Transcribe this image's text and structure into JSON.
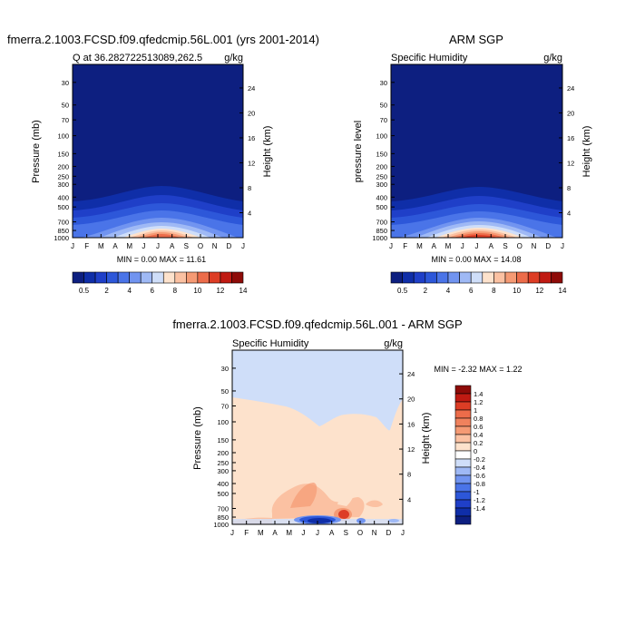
{
  "panels": [
    {
      "main_title": "fmerra.2.1003.FCSD.f09.qfedcmip.56L.001 (yrs 2001-2014)",
      "left_title": "Q at 36.282722513089,262.5",
      "right_title": "g/kg",
      "ylabel": "Pressure (mb)",
      "y2label": "Height (km)",
      "minmax": "MIN =   0.00 MAX =  11.61"
    },
    {
      "main_title": "ARM SGP",
      "left_title": "Specific Humidity",
      "right_title": "g/kg",
      "ylabel": "pressure level",
      "y2label": "Height (km)",
      "minmax": "MIN =   0.00 MAX =  14.08"
    },
    {
      "main_title": "fmerra.2.1003.FCSD.f09.qfedcmip.56L.001 - ARM SGP",
      "left_title": "Specific Humidity",
      "right_title": "g/kg",
      "ylabel": "Pressure (mb)",
      "y2label": "Height (km)",
      "minmax": "MIN =  -2.32 MAX =   1.22"
    }
  ],
  "chart_data": [
    {
      "type": "heatmap",
      "title": "fmerra.2.1003.FCSD.f09.qfedcmip.56L.001 (yrs 2001-2014)",
      "subtitle": "Q at 36.282722513089,262.5",
      "units": "g/kg",
      "xlabel": "",
      "ylabel": "Pressure (mb)",
      "y2label": "Height (km)",
      "x_ticks": [
        "J",
        "F",
        "M",
        "A",
        "M",
        "J",
        "J",
        "A",
        "S",
        "O",
        "N",
        "D",
        "J"
      ],
      "y_ticks": [
        "30",
        "50",
        "70",
        "100",
        "150",
        "200",
        "250",
        "300",
        "400",
        "500",
        "700",
        "850",
        "1000"
      ],
      "y2_ticks": [
        "24",
        "20",
        "16",
        "12",
        "8",
        "4"
      ],
      "ylim": [
        1000,
        20
      ],
      "min": 0.0,
      "max": 11.61,
      "colorbar_labels": [
        "0.5",
        "2",
        "4",
        "6",
        "8",
        "10",
        "12",
        "14"
      ],
      "colorbar_colors": [
        "#0d1f80",
        "#0f2ea8",
        "#1f3fc8",
        "#2d57d9",
        "#4a74e8",
        "#7194f0",
        "#9fb9f5",
        "#cfdef9",
        "#fde2cc",
        "#fbc1a2",
        "#f59a74",
        "#ec6c4a",
        "#dd3d25",
        "#c01a12",
        "#8e0b08"
      ],
      "freezing_contours": "pressure-level bands rising in summer (Jul peak)"
    },
    {
      "type": "heatmap",
      "title": "ARM SGP",
      "subtitle": "Specific Humidity",
      "units": "g/kg",
      "ylabel": "pressure level",
      "y2label": "Height (km)",
      "x_ticks": [
        "J",
        "F",
        "M",
        "A",
        "M",
        "J",
        "J",
        "A",
        "S",
        "O",
        "N",
        "D",
        "J"
      ],
      "y_ticks": [
        "30",
        "50",
        "70",
        "100",
        "150",
        "200",
        "250",
        "300",
        "400",
        "500",
        "700",
        "850",
        "1000"
      ],
      "y2_ticks": [
        "24",
        "20",
        "16",
        "12",
        "8",
        "4"
      ],
      "ylim": [
        1000,
        20
      ],
      "min": 0.0,
      "max": 14.08,
      "colorbar_labels": [
        "0.5",
        "2",
        "4",
        "6",
        "8",
        "10",
        "12",
        "14"
      ],
      "colorbar_colors": [
        "#0d1f80",
        "#0f2ea8",
        "#1f3fc8",
        "#2d57d9",
        "#4a74e8",
        "#7194f0",
        "#9fb9f5",
        "#cfdef9",
        "#fde2cc",
        "#fbc1a2",
        "#f59a74",
        "#ec6c4a",
        "#dd3d25",
        "#c01a12",
        "#8e0b08"
      ]
    },
    {
      "type": "heatmap",
      "title": "fmerra.2.1003.FCSD.f09.qfedcmip.56L.001 - ARM SGP",
      "subtitle": "Specific Humidity",
      "units": "g/kg",
      "ylabel": "Pressure (mb)",
      "y2label": "Height (km)",
      "x_ticks": [
        "J",
        "F",
        "M",
        "A",
        "M",
        "J",
        "J",
        "A",
        "S",
        "O",
        "N",
        "D",
        "J"
      ],
      "y_ticks": [
        "30",
        "50",
        "70",
        "100",
        "150",
        "200",
        "250",
        "300",
        "400",
        "500",
        "700",
        "850",
        "1000"
      ],
      "y2_ticks": [
        "24",
        "20",
        "16",
        "12",
        "8",
        "4"
      ],
      "ylim": [
        1000,
        20
      ],
      "min": -2.32,
      "max": 1.22,
      "colorbar_labels": [
        "1.4",
        "1.2",
        "1",
        "0.8",
        "0.6",
        "0.4",
        "0.2",
        "0",
        "-0.2",
        "-0.4",
        "-0.6",
        "-0.8",
        "-1",
        "-1.2",
        "-1.4"
      ],
      "colorbar_colors": [
        "#8e0b08",
        "#c01a12",
        "#dd3d25",
        "#ec6c4a",
        "#f0825d",
        "#f59a74",
        "#fbc1a2",
        "#fde2cc",
        "#ffffff",
        "#cfdef9",
        "#9fb9f5",
        "#7194f0",
        "#4a74e8",
        "#2d57d9",
        "#1f3fc8",
        "#0f2ea8",
        "#0d1f80"
      ]
    }
  ]
}
